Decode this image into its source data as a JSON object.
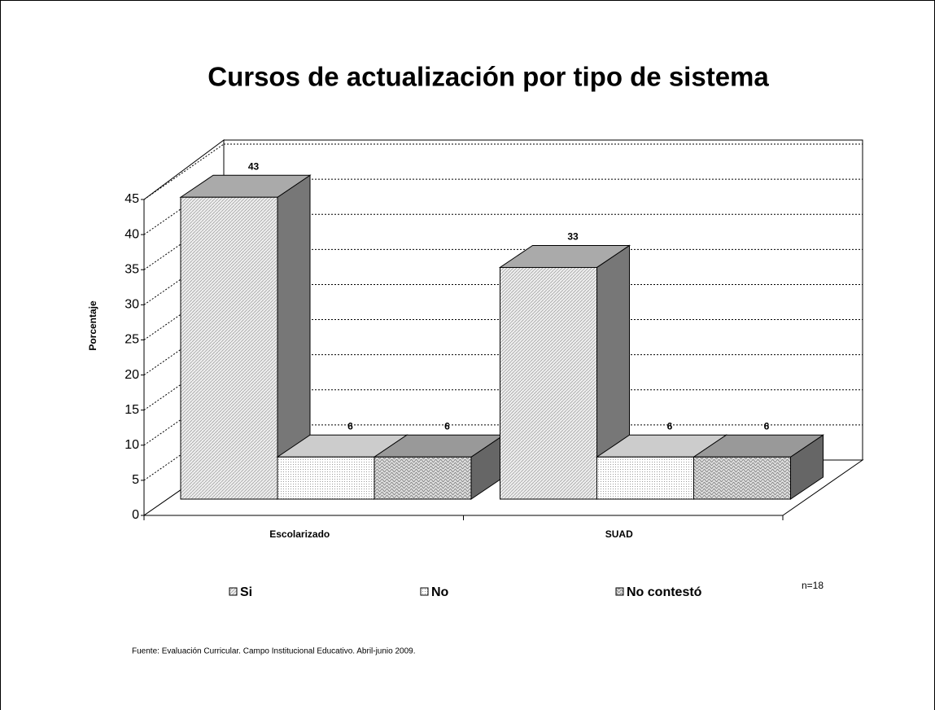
{
  "chart_data": {
    "type": "bar3d",
    "title": "Cursos de actualización por tipo de sistema",
    "y_label": "Porcentaje",
    "categories": [
      "Escolarizado",
      "SUAD"
    ],
    "series": [
      {
        "name": "Si",
        "color": "#d9d9d9",
        "values": [
          43,
          33
        ]
      },
      {
        "name": "No",
        "color": "#f2f2f2",
        "values": [
          6,
          6
        ]
      },
      {
        "name": "No contestó",
        "color": "#bfbfbf",
        "values": [
          6,
          6
        ]
      }
    ],
    "ylim": [
      0,
      45
    ],
    "yticks": [
      0,
      5,
      10,
      15,
      20,
      25,
      30,
      35,
      40,
      45
    ],
    "grid": true,
    "legend": "bottom",
    "annotation": "n=18",
    "source": "Fuente:  Evaluación Curricular. Campo Institucional Educativo. Abril-junio 2009."
  }
}
